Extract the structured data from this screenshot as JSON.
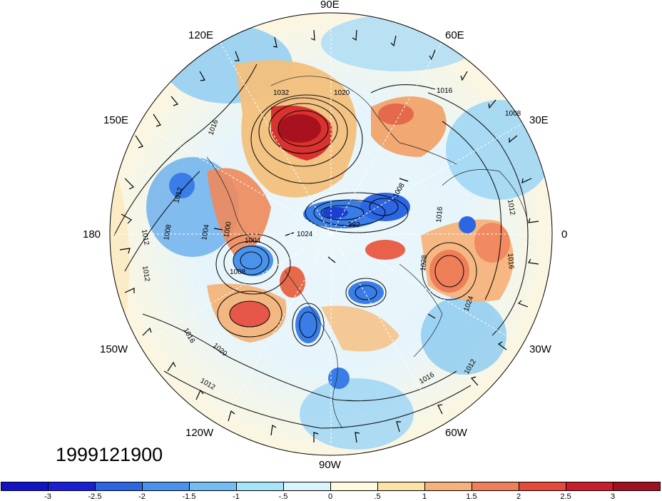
{
  "timestamp": "1999121900",
  "longitude_labels": [
    {
      "id": "lon-90e",
      "text": "90E"
    },
    {
      "id": "lon-60e",
      "text": "60E"
    },
    {
      "id": "lon-120e",
      "text": "120E"
    },
    {
      "id": "lon-30e",
      "text": "30E"
    },
    {
      "id": "lon-150e",
      "text": "150E"
    },
    {
      "id": "lon-0",
      "text": "0"
    },
    {
      "id": "lon-180",
      "text": "180"
    },
    {
      "id": "lon-30w",
      "text": "30W"
    },
    {
      "id": "lon-150w",
      "text": "150W"
    },
    {
      "id": "lon-60w",
      "text": "60W"
    },
    {
      "id": "lon-120w",
      "text": "120W"
    },
    {
      "id": "lon-90w",
      "text": "90W"
    }
  ],
  "contour_labels": [
    "1032",
    "1020",
    "1016",
    "1016",
    "1008",
    "1012",
    "1008",
    "1004",
    "1000",
    "1004",
    "1012",
    "1012",
    "1008",
    "1016",
    "1020",
    "1012",
    "1016",
    "1012",
    "1016",
    "1024",
    "1012",
    "1028",
    "1016",
    "1024",
    "1008",
    "992"
  ],
  "colorbar": {
    "colors": [
      "#1a1fd6",
      "#2d66e3",
      "#4a93ec",
      "#72bdf3",
      "#a6e4f8",
      "#d9f4fb",
      "#fffbe0",
      "#fbe2a6",
      "#f6b27c",
      "#ee7f59",
      "#e34a3c",
      "#c81d2a",
      "#a10f22"
    ],
    "ticks": [
      "-3",
      "-2.5",
      "-2",
      "-1.5",
      "-1",
      "-.5",
      "0",
      ".5",
      "1",
      "1.5",
      "2",
      "2.5",
      "3"
    ]
  }
}
